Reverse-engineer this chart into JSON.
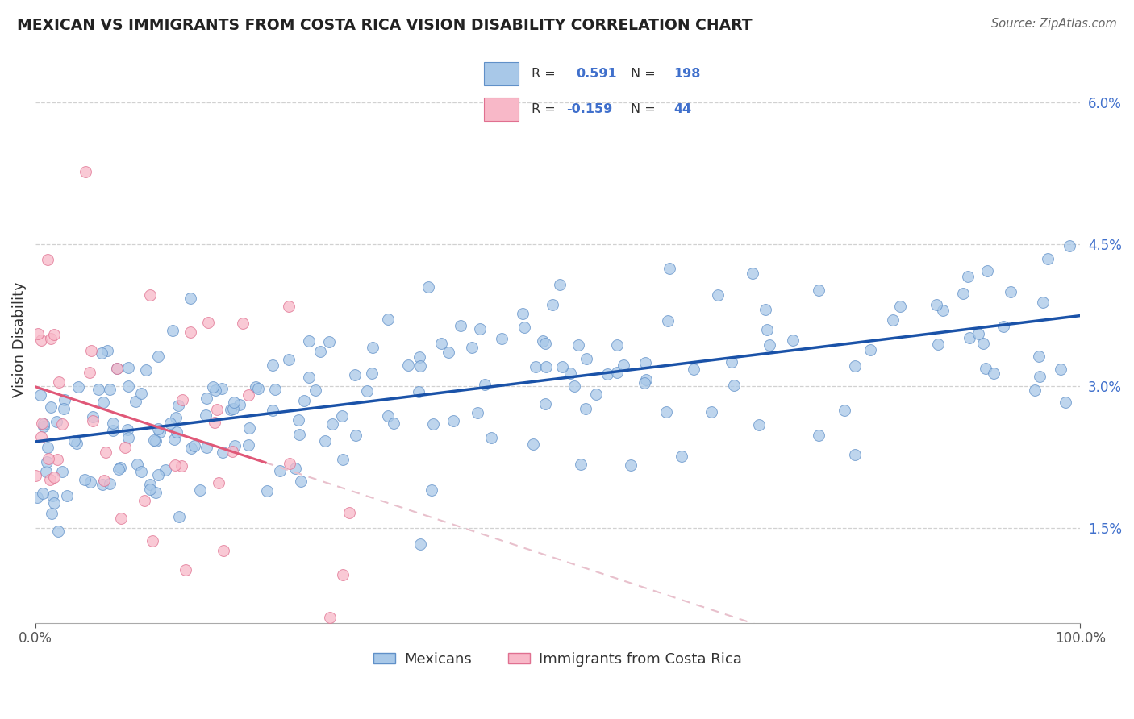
{
  "title": "MEXICAN VS IMMIGRANTS FROM COSTA RICA VISION DISABILITY CORRELATION CHART",
  "source": "Source: ZipAtlas.com",
  "ylabel": "Vision Disability",
  "y_ticks": [
    0.015,
    0.03,
    0.045,
    0.06
  ],
  "y_tick_labels": [
    "1.5%",
    "3.0%",
    "4.5%",
    "6.0%"
  ],
  "x_min": 0.0,
  "x_max": 1.0,
  "y_min": 0.005,
  "y_max": 0.065,
  "blue_R": 0.591,
  "blue_N": 198,
  "pink_R": -0.159,
  "pink_N": 44,
  "blue_color": "#a8c8e8",
  "blue_edge_color": "#6090c8",
  "blue_line_color": "#1a52a8",
  "pink_color": "#f8b8c8",
  "pink_edge_color": "#e07090",
  "pink_line_color": "#e05878",
  "pink_line_dash_color": "#e8c0cc",
  "grid_color": "#cccccc",
  "background_color": "#ffffff",
  "title_color": "#222222",
  "legend_text_color": "#4070cc",
  "blue_trend_start_y": 0.0245,
  "blue_trend_end_y": 0.0335,
  "pink_trend_start_y": 0.029,
  "pink_trend_slope": -0.028
}
